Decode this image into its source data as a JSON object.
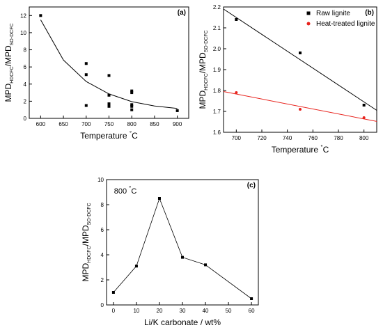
{
  "chart_data": [
    {
      "type": "scatter",
      "panel_label": "(a)",
      "xlabel": "Temperature",
      "xlabel_unit": "°C",
      "ylabel_main": "MPD",
      "ylabel_sub1": "HDCFC",
      "ylabel_sep": "/MPD",
      "ylabel_sub2": "SO-DCFC",
      "xlim": [
        575,
        925
      ],
      "ylim": [
        0,
        13
      ],
      "xticks": [
        "600",
        "650",
        "700",
        "750",
        "800",
        "850",
        "900"
      ],
      "yticks": [
        "0",
        "2",
        "4",
        "6",
        "8",
        "10",
        "12"
      ],
      "series": [
        {
          "points": [
            [
              600,
              12.0
            ],
            [
              700,
              6.4
            ],
            [
              700,
              5.1
            ],
            [
              700,
              1.5
            ],
            [
              750,
              5.0
            ],
            [
              750,
              2.7
            ],
            [
              750,
              1.7
            ],
            [
              750,
              1.4
            ],
            [
              800,
              3.2
            ],
            [
              800,
              3.0
            ],
            [
              800,
              1.6
            ],
            [
              800,
              1.4
            ],
            [
              800,
              1.0
            ],
            [
              900,
              0.9
            ]
          ],
          "fit": "exponential",
          "fit_curve": [
            [
              600,
              11.5
            ],
            [
              650,
              6.8
            ],
            [
              700,
              4.3
            ],
            [
              750,
              2.85
            ],
            [
              800,
              1.95
            ],
            [
              850,
              1.45
            ],
            [
              900,
              1.15
            ]
          ]
        }
      ]
    },
    {
      "type": "scatter",
      "panel_label": "(b)",
      "xlabel": "Temperature",
      "xlabel_unit": "°C",
      "ylabel_main": "MPD",
      "ylabel_sub1": "HDCFC",
      "ylabel_sep": "/MPD",
      "ylabel_sub2": "SO-DCFC",
      "xlim": [
        690,
        810
      ],
      "ylim": [
        1.6,
        2.2
      ],
      "xticks": [
        "700",
        "720",
        "740",
        "760",
        "780",
        "800"
      ],
      "yticks": [
        "1.6",
        "1.7",
        "1.8",
        "1.9",
        "2.0",
        "2.1",
        "2.2"
      ],
      "legend_position": "top-right",
      "series": [
        {
          "name": "Raw lignite",
          "color": "#000000",
          "marker": "square",
          "points": [
            [
              700,
              2.14
            ],
            [
              750,
              1.98
            ],
            [
              800,
              1.73
            ]
          ],
          "fit_line": [
            [
              690,
              2.19
            ],
            [
              810,
              1.705
            ]
          ]
        },
        {
          "name": "Heat-treated lignite",
          "color": "#e8231d",
          "marker": "circle",
          "points": [
            [
              700,
              1.79
            ],
            [
              750,
              1.71
            ],
            [
              800,
              1.67
            ]
          ],
          "fit_line": [
            [
              690,
              1.795
            ],
            [
              810,
              1.652
            ]
          ]
        }
      ]
    },
    {
      "type": "line",
      "panel_label": "(c)",
      "annotation": "800",
      "annotation_unit": "°C",
      "xlabel": "Li/K carbonate / wt%",
      "ylabel_main": "MPD",
      "ylabel_sub1": "HDCFC",
      "ylabel_sep": "/MPD",
      "ylabel_sub2": "SO-DCFC",
      "xlim": [
        -3,
        63
      ],
      "ylim": [
        0,
        10
      ],
      "xticks": [
        "0",
        "10",
        "20",
        "30",
        "40",
        "50",
        "60"
      ],
      "yticks": [
        "0",
        "2",
        "4",
        "6",
        "8",
        "10"
      ],
      "series": [
        {
          "points": [
            [
              0,
              1.0
            ],
            [
              10,
              3.1
            ],
            [
              20,
              8.5
            ],
            [
              30,
              3.8
            ],
            [
              40,
              3.2
            ],
            [
              60,
              0.5
            ]
          ]
        }
      ]
    }
  ]
}
